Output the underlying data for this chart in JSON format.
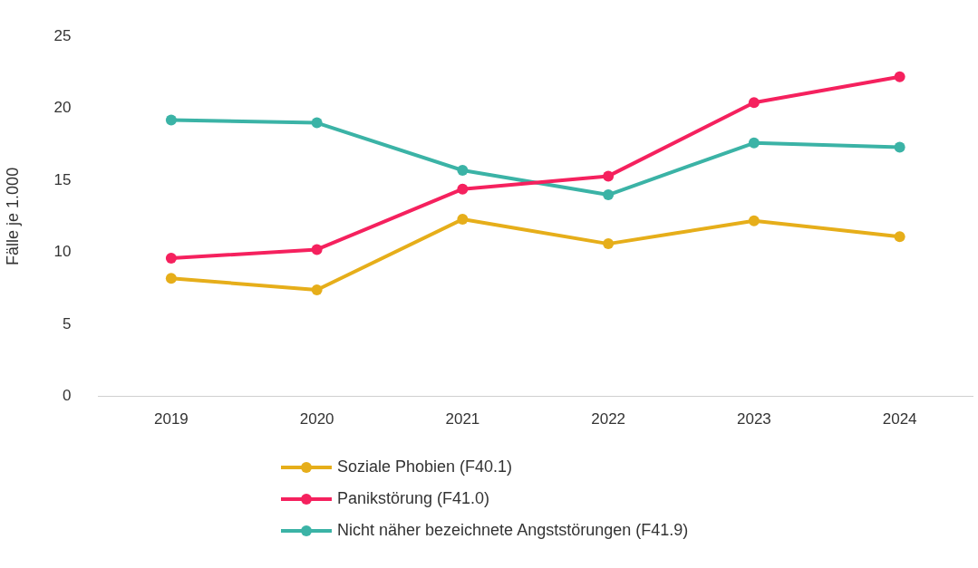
{
  "chart_data": {
    "type": "line",
    "ylabel": "Fälle je 1.000",
    "categories": [
      "2019",
      "2020",
      "2021",
      "2022",
      "2023",
      "2024"
    ],
    "series": [
      {
        "name": "Soziale Phobien (F40.1)",
        "color": "#e6ae1a",
        "values": [
          8.2,
          7.4,
          12.3,
          10.6,
          12.2,
          11.1
        ]
      },
      {
        "name": "Panikstörung (F41.0)",
        "color": "#f5215e",
        "values": [
          9.6,
          10.2,
          14.4,
          15.3,
          20.4,
          22.2
        ]
      },
      {
        "name": "Nicht näher bezeichnete Angststörungen (F41.9)",
        "color": "#3bb3a6",
        "values": [
          19.2,
          19.0,
          15.7,
          14.0,
          17.6,
          17.3
        ]
      }
    ],
    "ylim": [
      0,
      25
    ],
    "yticks": [
      0,
      5,
      10,
      15,
      20,
      25
    ],
    "grid": false,
    "legend": "bottom",
    "marker": "circle",
    "line_style": "solid"
  }
}
